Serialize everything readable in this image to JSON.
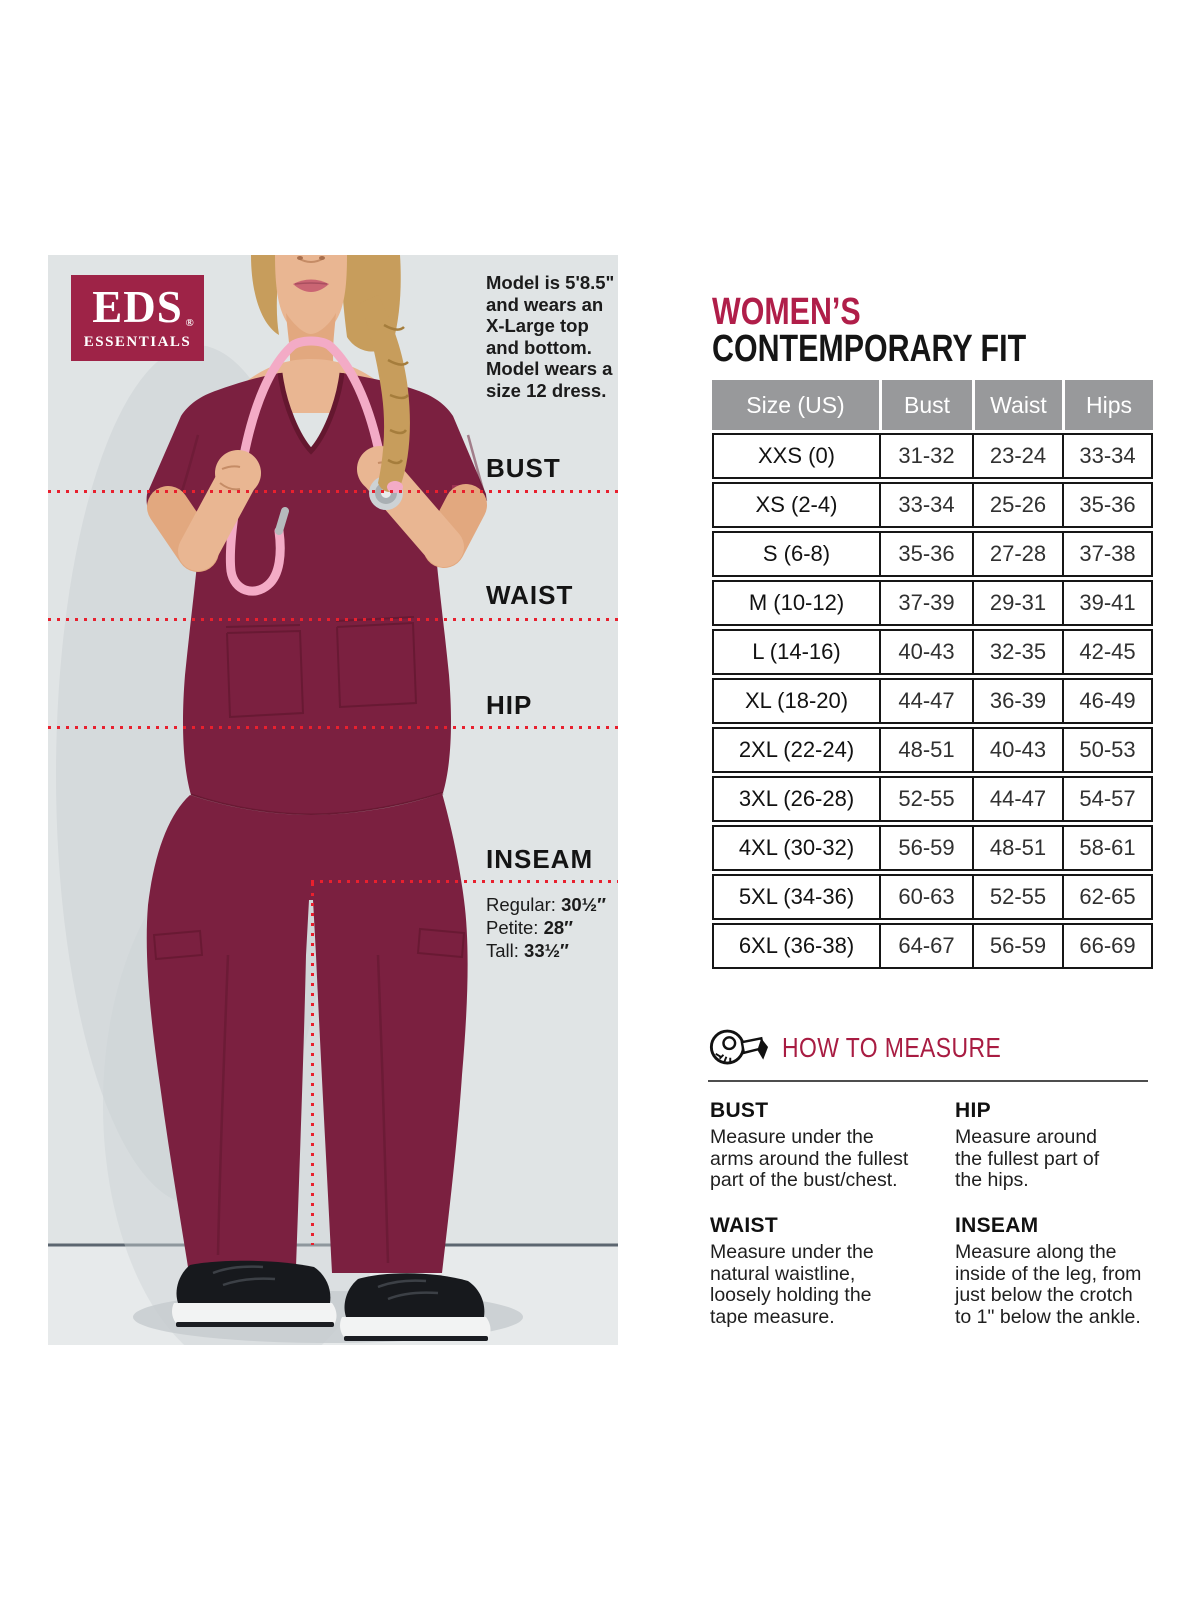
{
  "colors": {
    "brand_crimson": "#9e2347",
    "heading_crimson": "#b01e49",
    "dotted_red": "#e8202e",
    "table_header_gray": "#98999b",
    "scrub_wine": "#7b2040",
    "photo_background": "#e0e4e5"
  },
  "brand": {
    "name": "EDS",
    "registered": "®",
    "subname": "ESSENTIALS"
  },
  "photo": {
    "model_info_lines": [
      "Model is 5'8.5\"",
      "and wears an",
      "X-Large top",
      "and bottom.",
      "Model wears a",
      "size 12 dress."
    ],
    "measure_labels": [
      "BUST",
      "WAIST",
      "HIP",
      "INSEAM"
    ],
    "inseam_details": [
      {
        "label": "Regular:",
        "value": "30½″"
      },
      {
        "label": "Petite:",
        "value": "28″"
      },
      {
        "label": "Tall:",
        "value": "33½″"
      }
    ]
  },
  "title": {
    "line1": "WOMEN’S",
    "line2": "CONTEMPORARY FIT"
  },
  "size_chart": {
    "headers": [
      "Size (US)",
      "Bust",
      "Waist",
      "Hips"
    ],
    "rows": [
      [
        "XXS (0)",
        "31-32",
        "23-24",
        "33-34"
      ],
      [
        "XS (2-4)",
        "33-34",
        "25-26",
        "35-36"
      ],
      [
        "S (6-8)",
        "35-36",
        "27-28",
        "37-38"
      ],
      [
        "M (10-12)",
        "37-39",
        "29-31",
        "39-41"
      ],
      [
        "L (14-16)",
        "40-43",
        "32-35",
        "42-45"
      ],
      [
        "XL (18-20)",
        "44-47",
        "36-39",
        "46-49"
      ],
      [
        "2XL (22-24)",
        "48-51",
        "40-43",
        "50-53"
      ],
      [
        "3XL (26-28)",
        "52-55",
        "44-47",
        "54-57"
      ],
      [
        "4XL (30-32)",
        "56-59",
        "48-51",
        "58-61"
      ],
      [
        "5XL (34-36)",
        "60-63",
        "52-55",
        "62-65"
      ],
      [
        "6XL (36-38)",
        "64-67",
        "56-59",
        "66-69"
      ]
    ]
  },
  "how_to_measure": {
    "heading": "HOW TO MEASURE",
    "icon": "tape-measure-icon",
    "items": [
      {
        "heading": "BUST",
        "lines": [
          "Measure under the",
          "arms around the fullest",
          "part of the bust/chest."
        ]
      },
      {
        "heading": "WAIST",
        "lines": [
          "Measure under the",
          "natural waistline,",
          "loosely holding the",
          "tape measure."
        ]
      },
      {
        "heading": "HIP",
        "lines": [
          "Measure around",
          "the fullest part of",
          "the hips."
        ]
      },
      {
        "heading": "INSEAM",
        "lines": [
          "Measure along the",
          "inside of the leg, from",
          "just below the crotch",
          "to 1\" below the ankle."
        ]
      }
    ]
  }
}
